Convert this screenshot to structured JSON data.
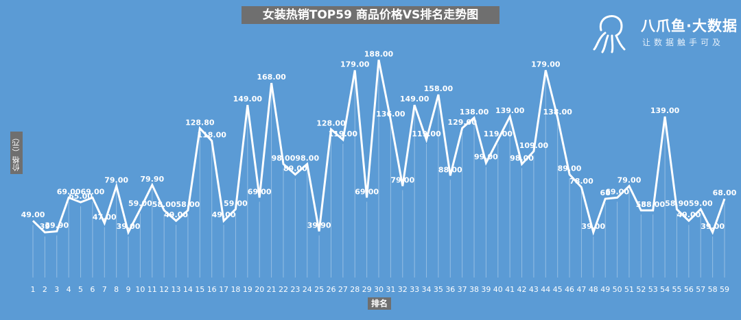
{
  "logo": {
    "name": "八爪鱼·大数据",
    "slogan": "让数据触手可及"
  },
  "chart_data": {
    "type": "line",
    "title": "女装热销TOP59 商品价格VS排名走势图",
    "xlabel": "排名",
    "ylabel": "价格（元）",
    "ylim": [
      0,
      200
    ],
    "grid": true,
    "legend": "none",
    "colors": {
      "background": "#5b9bd5",
      "line": "#ffffff",
      "label_box": "#6f6f6f"
    },
    "categories": [
      "1",
      "2",
      "3",
      "4",
      "5",
      "6",
      "7",
      "8",
      "9",
      "10",
      "11",
      "12",
      "13",
      "14",
      "15",
      "16",
      "17",
      "18",
      "19",
      "20",
      "21",
      "22",
      "23",
      "24",
      "25",
      "26",
      "27",
      "28",
      "29",
      "30",
      "31",
      "32",
      "33",
      "34",
      "35",
      "36",
      "37",
      "38",
      "39",
      "40",
      "41",
      "42",
      "43",
      "44",
      "45",
      "46",
      "47",
      "48",
      "49",
      "50",
      "51",
      "52",
      "53",
      "54",
      "55",
      "56",
      "57",
      "58",
      "59"
    ],
    "series": [
      {
        "values": [
          49,
          39,
          39.9,
          69,
          65,
          69,
          47,
          79,
          39,
          59,
          79.9,
          58,
          49,
          58,
          128.8,
          118,
          49,
          59,
          149,
          69,
          168,
          98,
          89,
          98,
          39.9,
          128,
          119,
          179,
          69,
          188,
          136,
          79,
          149,
          119,
          158,
          88,
          129,
          138,
          99,
          119,
          139,
          98,
          109,
          179,
          138,
          89,
          78,
          39,
          68,
          69,
          79,
          58,
          58,
          139,
          58.9,
          49,
          59,
          39,
          68
        ],
        "labels": [
          "49.00",
          "39",
          "39.90",
          "69.00",
          "65.00",
          "69.00",
          "47.00",
          "79.00",
          "39.00",
          "59.00",
          "79.90",
          "58.00",
          "49.00",
          "58.00",
          "128.80",
          "118.00",
          "49.00",
          "59.00",
          "149.00",
          "69.00",
          "168.00",
          "98.00",
          "89.00",
          "98.00",
          "39.90",
          "128.00",
          "119.00",
          "179.00",
          "69.00",
          "188.00",
          "136.00",
          "79.00",
          "149.00",
          "119.00",
          "158.00",
          "88.00",
          "129.00",
          "138.00",
          "99.00",
          "119.00",
          "139.00",
          "98.00",
          "109.00",
          "179.00",
          "138.00",
          "89.00",
          "78.00",
          "39.00",
          "68",
          "69.00",
          "79.00",
          "58",
          "58.00",
          "139.00",
          "58.90",
          "49.00",
          "59.00",
          "39.00",
          "68.00"
        ]
      }
    ]
  }
}
